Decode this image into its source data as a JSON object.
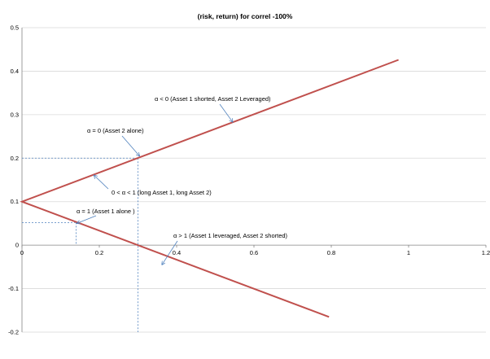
{
  "chart_data": {
    "type": "line",
    "title": "(risk, return) for correl  -100%",
    "xlabel": "",
    "ylabel": "",
    "xlim": [
      0,
      1.2
    ],
    "ylim": [
      -0.2,
      0.5
    ],
    "x_ticks": [
      "0",
      "0.2",
      "0.4",
      "0.6",
      "0.8",
      "1",
      "1.2"
    ],
    "y_ticks": [
      "0.5",
      "0.4",
      "0.3",
      "0.2",
      "0.1",
      "0",
      "-0.1",
      "-0.2"
    ],
    "grid": "horizontal",
    "legend": "none",
    "series": [
      {
        "color": "#c0504d",
        "points": [
          [
            0.974,
            0.426
          ],
          [
            0,
            0.1
          ],
          [
            0.794,
            -0.165
          ]
        ]
      }
    ],
    "reference_lines": [
      {
        "x": [
          0,
          0.3
        ],
        "y": [
          0.2,
          0.2
        ]
      },
      {
        "x": [
          0.3,
          0.3
        ],
        "y": [
          0.2,
          -0.2
        ]
      },
      {
        "x": [
          0,
          0.14
        ],
        "y": [
          0.052,
          0.052
        ]
      },
      {
        "x": [
          0.14,
          0.14
        ],
        "y": [
          0.052,
          0
        ]
      }
    ],
    "annotations": [
      {
        "text": "α < 0 (Asset 1 shorted, Asset 2 Leveraged)",
        "point": [
          0.545,
          0.283
        ]
      },
      {
        "text": "α = 0 (Asset 2 alone)",
        "point": [
          0.304,
          0.205
        ]
      },
      {
        "text": "0 < α < 1 (long Asset 1, long Asset 2)",
        "point": [
          0.186,
          0.161
        ]
      },
      {
        "text": "α = 1 (Asset 1 alone )",
        "point": [
          0.142,
          0.05
        ]
      },
      {
        "text": "α > 1 (Asset 1 leveraged, Asset 2 shorted)",
        "point": [
          0.362,
          -0.045
        ]
      }
    ]
  }
}
